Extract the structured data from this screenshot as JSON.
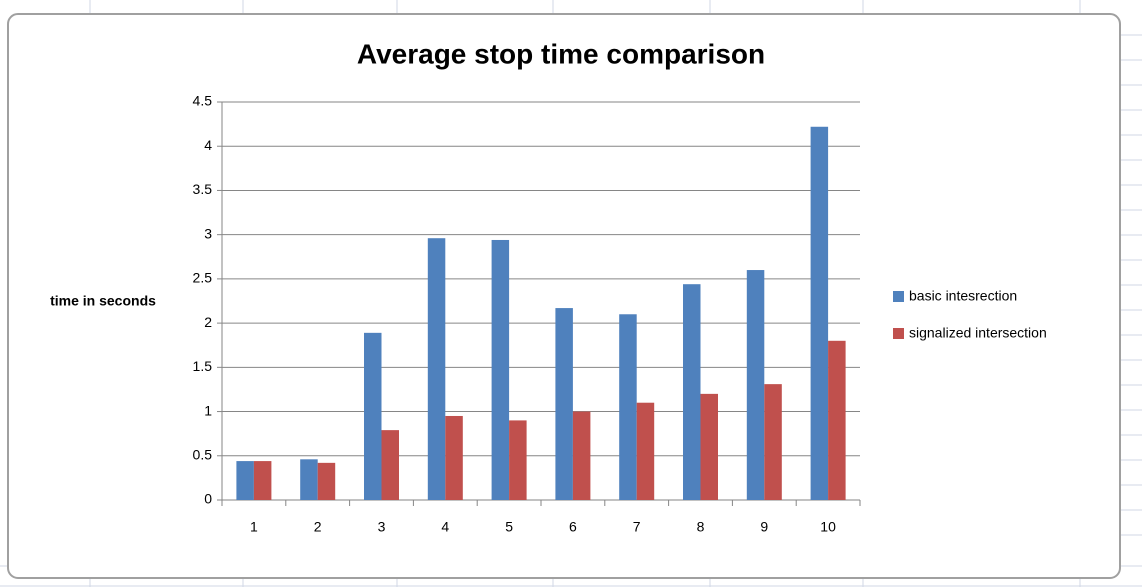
{
  "chart_data": {
    "type": "bar",
    "title": "Average stop time comparison",
    "y_label": "time in seconds",
    "categories": [
      "1",
      "2",
      "3",
      "4",
      "5",
      "6",
      "7",
      "8",
      "9",
      "10"
    ],
    "series": [
      {
        "name": "basic intesrection",
        "color": "#4f81bd",
        "values": [
          0.44,
          0.46,
          1.89,
          2.96,
          2.94,
          2.17,
          2.1,
          2.44,
          2.6,
          4.22
        ]
      },
      {
        "name": "signalized intersection",
        "color": "#c0504d",
        "values": [
          0.44,
          0.42,
          0.79,
          0.95,
          0.9,
          1.0,
          1.1,
          1.2,
          1.31,
          1.8
        ]
      }
    ],
    "ylim": [
      0,
      4.5
    ],
    "yticks": [
      0,
      0.5,
      1,
      1.5,
      2,
      2.5,
      3,
      3.5,
      4,
      4.5
    ],
    "grid": true,
    "legend": "right"
  }
}
